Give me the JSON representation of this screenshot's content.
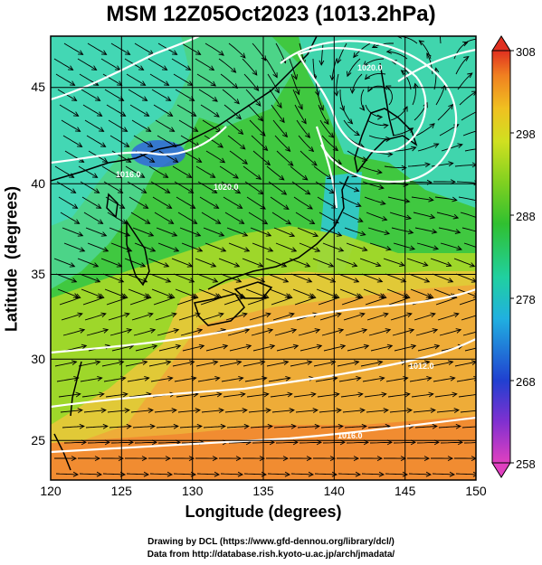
{
  "title": "MSM 12Z05Oct2023 (1013.2hPa)",
  "x_axis": {
    "label": "Longitude (degrees)",
    "ticks": [
      "120",
      "125",
      "130",
      "135",
      "140",
      "145",
      "150"
    ],
    "range": [
      120,
      150
    ]
  },
  "y_axis": {
    "label": "Latitude  (degrees)",
    "ticks": [
      "25",
      "30",
      "35",
      "40",
      "45"
    ],
    "range": [
      22.4,
      47.6
    ]
  },
  "colorbar": {
    "ticks": [
      "258",
      "268",
      "278",
      "288",
      "298",
      "308"
    ],
    "range": [
      258,
      308
    ],
    "colors": [
      "#e040c0",
      "#8030d0",
      "#2040d0",
      "#20b0e0",
      "#20d0a0",
      "#30c030",
      "#80d020",
      "#d0e020",
      "#f0c020",
      "#f08020",
      "#e03020"
    ]
  },
  "contour_labels": [
    "1020.0",
    "1016.0",
    "1012.0",
    "1016.0",
    "1020.0"
  ],
  "credits": {
    "line1": "Drawing by DCL (https://www.gfd-dennou.org/library/dcl/)",
    "line2": "Data from http://database.rish.kyoto-u.ac.jp/arch/jmadata/"
  }
}
